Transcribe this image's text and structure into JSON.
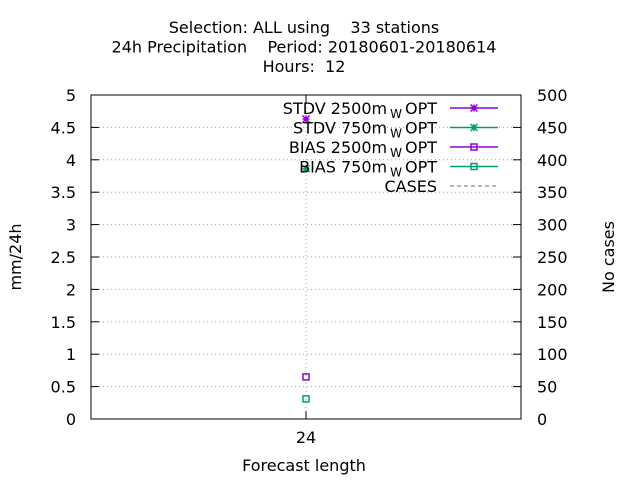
{
  "chart_data": {
    "type": "scatter",
    "title_lines": [
      "Selection: ALL using    33 stations",
      "24h Precipitation    Period: 20180601-20180614",
      "Hours:  12"
    ],
    "xlabel": "Forecast length",
    "ylabel": "mm/24h",
    "y2label": "No cases",
    "categories": [
      "24"
    ],
    "ylim": [
      0,
      5
    ],
    "yticks": [
      0,
      0.5,
      1,
      1.5,
      2,
      2.5,
      3,
      3.5,
      4,
      4.5,
      5
    ],
    "ytick_labels": [
      "0",
      "0.5",
      "1",
      "1.5",
      "2",
      "2.5",
      "3",
      "3.5",
      "4",
      "4.5",
      "5"
    ],
    "y2lim": [
      0,
      500
    ],
    "y2ticks": [
      0,
      50,
      100,
      150,
      200,
      250,
      300,
      350,
      400,
      450,
      500
    ],
    "grid": true,
    "legend_position": "top-right",
    "series": [
      {
        "name": "STDV 2500m",
        "subscript": "W",
        "suffix": "OPT",
        "color": "#9400d3",
        "marker": "star",
        "x": [
          "24"
        ],
        "values": [
          4.63
        ]
      },
      {
        "name": "STDV 750m",
        "subscript": "W",
        "suffix": "OPT",
        "color": "#009e73",
        "marker": "star",
        "x": [
          "24"
        ],
        "values": [
          3.86
        ]
      },
      {
        "name": "BIAS 2500m",
        "subscript": "W",
        "suffix": "OPT",
        "color": "#9400d3",
        "marker": "box",
        "x": [
          "24"
        ],
        "values": [
          0.65
        ]
      },
      {
        "name": "BIAS 750m",
        "subscript": "W",
        "suffix": "OPT",
        "color": "#009e73",
        "marker": "box",
        "x": [
          "24"
        ],
        "values": [
          0.31
        ]
      },
      {
        "name": "CASES",
        "subscript": "",
        "suffix": "",
        "color": "#a0a0a0",
        "marker": "dashed-line",
        "axis": "y2",
        "x": [
          "24"
        ],
        "values": [
          385
        ]
      }
    ]
  }
}
